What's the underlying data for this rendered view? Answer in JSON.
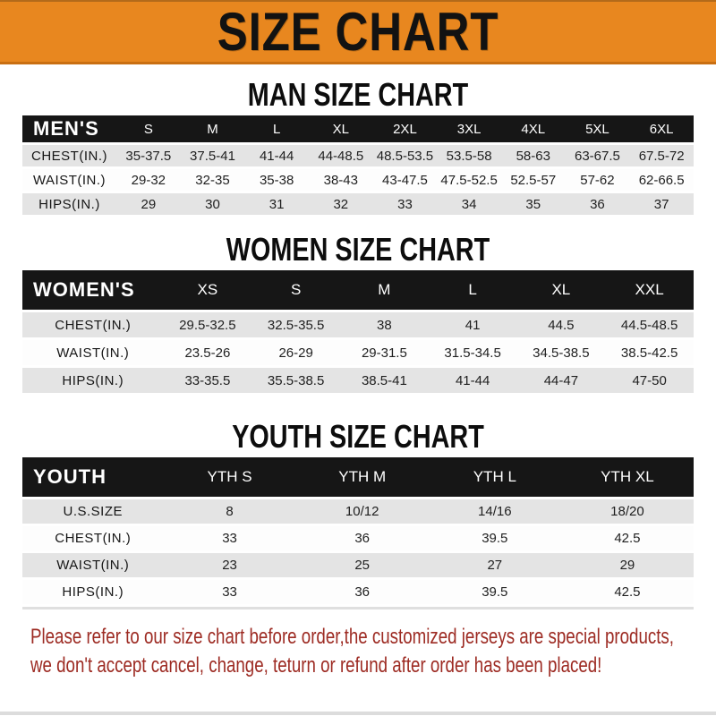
{
  "banner": {
    "title": "SIZE CHART"
  },
  "sections": {
    "man": {
      "title": "MAN SIZE CHART",
      "table": {
        "label": "MEN'S",
        "columns": [
          "S",
          "M",
          "L",
          "XL",
          "2XL",
          "3XL",
          "4XL",
          "5XL",
          "6XL"
        ],
        "rows": [
          {
            "label": "CHEST(IN.)",
            "values": [
              "35-37.5",
              "37.5-41",
              "41-44",
              "44-48.5",
              "48.5-53.5",
              "53.5-58",
              "58-63",
              "63-67.5",
              "67.5-72"
            ]
          },
          {
            "label": "WAIST(IN.)",
            "values": [
              "29-32",
              "32-35",
              "35-38",
              "38-43",
              "43-47.5",
              "47.5-52.5",
              "52.5-57",
              "57-62",
              "62-66.5"
            ]
          },
          {
            "label": "HIPS(IN.)",
            "values": [
              "29",
              "30",
              "31",
              "32",
              "33",
              "34",
              "35",
              "36",
              "37"
            ]
          }
        ]
      }
    },
    "women": {
      "title": "WOMEN SIZE CHART",
      "table": {
        "label": "WOMEN'S",
        "columns": [
          "XS",
          "S",
          "M",
          "L",
          "XL",
          "XXL"
        ],
        "rows": [
          {
            "label": "CHEST(IN.)",
            "values": [
              "29.5-32.5",
              "32.5-35.5",
              "38",
              "41",
              "44.5",
              "44.5-48.5"
            ]
          },
          {
            "label": "WAIST(IN.)",
            "values": [
              "23.5-26",
              "26-29",
              "29-31.5",
              "31.5-34.5",
              "34.5-38.5",
              "38.5-42.5"
            ]
          },
          {
            "label": "HIPS(IN.)",
            "values": [
              "33-35.5",
              "35.5-38.5",
              "38.5-41",
              "41-44",
              "44-47",
              "47-50"
            ]
          }
        ]
      }
    },
    "youth": {
      "title": "YOUTH SIZE CHART",
      "table": {
        "label": "YOUTH",
        "columns": [
          "YTH S",
          "YTH M",
          "YTH L",
          "YTH XL"
        ],
        "rows": [
          {
            "label": "U.S.SIZE",
            "values": [
              "8",
              "10/12",
              "14/16",
              "18/20"
            ]
          },
          {
            "label": "CHEST(IN.)",
            "values": [
              "33",
              "36",
              "39.5",
              "42.5"
            ]
          },
          {
            "label": "WAIST(IN.)",
            "values": [
              "23",
              "25",
              "27",
              "29"
            ]
          },
          {
            "label": "HIPS(IN.)",
            "values": [
              "33",
              "36",
              "39.5",
              "42.5"
            ]
          }
        ]
      }
    }
  },
  "footer": {
    "line1": "Please refer to our size chart before order,the customized jerseys are special products,",
    "line2": "we don't accept cancel, change, teturn or refund after order has been placed!"
  },
  "colors": {
    "banner_orange": "#E8871F",
    "header_black": "#161616",
    "row_gray": "#E4E4E4",
    "note_red": "#9D2B23"
  }
}
